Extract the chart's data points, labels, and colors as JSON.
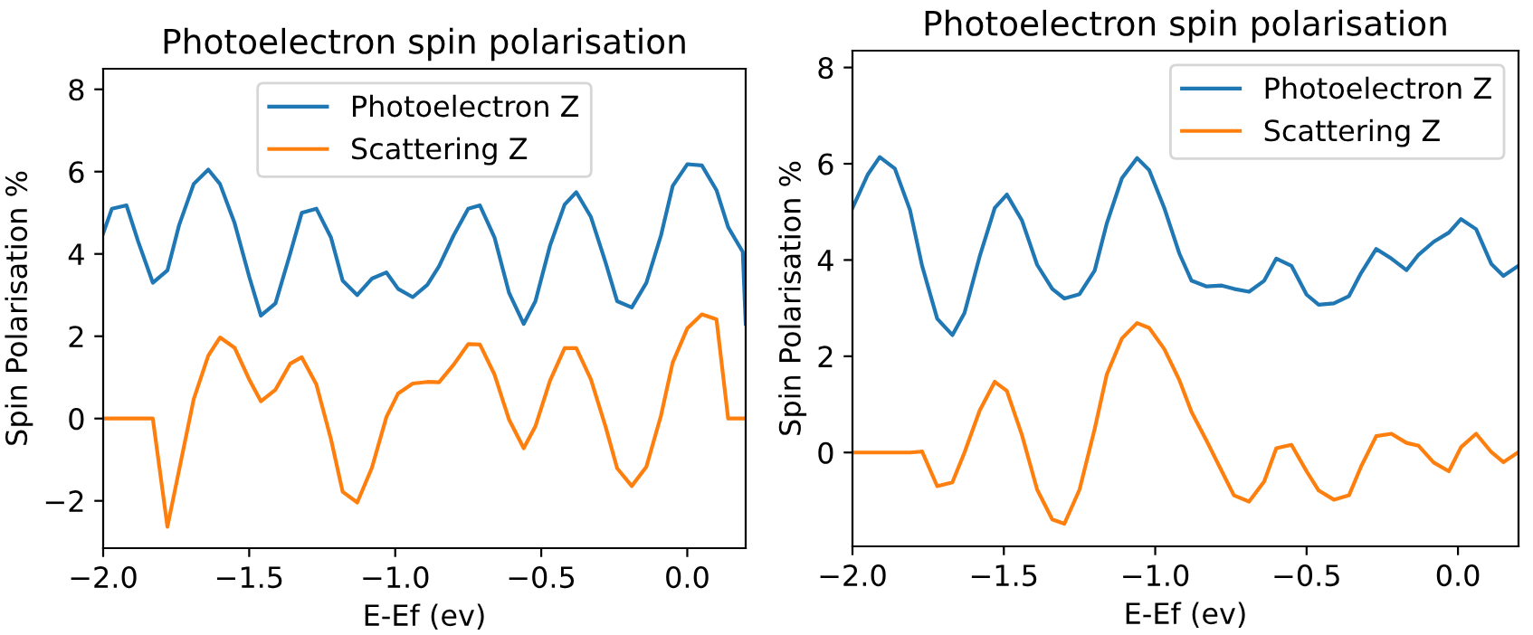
{
  "chart_data": [
    {
      "type": "line",
      "title": "Photoelectron spin polarisation",
      "xlabel": "E-Ef (ev)",
      "ylabel": "Spin Polarisation %",
      "xlim": [
        -2.0,
        0.2
      ],
      "ylim": [
        -3.15,
        8.5
      ],
      "xticks": [
        {
          "value": -2.0,
          "label": "−2.0"
        },
        {
          "value": -1.5,
          "label": "−1.5"
        },
        {
          "value": -1.0,
          "label": "−1.0"
        },
        {
          "value": -0.5,
          "label": "−0.5"
        },
        {
          "value": 0.0,
          "label": "0.0"
        }
      ],
      "yticks": [
        {
          "value": -2,
          "label": "−2"
        },
        0,
        2,
        4,
        6,
        8
      ],
      "legend": "top center",
      "grid": false,
      "x": [
        -2.0,
        -1.97,
        -1.92,
        -1.88,
        -1.83,
        -1.78,
        -1.74,
        -1.69,
        -1.64,
        -1.6,
        -1.55,
        -1.5,
        -1.46,
        -1.41,
        -1.36,
        -1.32,
        -1.27,
        -1.22,
        -1.18,
        -1.13,
        -1.08,
        -1.03,
        -0.99,
        -0.94,
        -0.89,
        -0.85,
        -0.8,
        -0.75,
        -0.71,
        -0.66,
        -0.61,
        -0.56,
        -0.52,
        -0.47,
        -0.42,
        -0.38,
        -0.33,
        -0.28,
        -0.24,
        -0.19,
        -0.14,
        -0.09,
        -0.05,
        0.0,
        0.05,
        0.1,
        0.14,
        0.19,
        0.2
      ],
      "series": [
        {
          "name": "Photoelectron Z",
          "color": "#1f77b4",
          "values": [
            4.5,
            5.1,
            5.18,
            4.3,
            3.3,
            3.6,
            4.7,
            5.7,
            6.05,
            5.7,
            4.75,
            3.45,
            2.5,
            2.8,
            4.0,
            5.0,
            5.1,
            4.4,
            3.35,
            3.0,
            3.4,
            3.55,
            3.15,
            2.95,
            3.25,
            3.7,
            4.45,
            5.1,
            5.18,
            4.4,
            3.05,
            2.3,
            2.85,
            4.2,
            5.2,
            5.5,
            4.9,
            3.8,
            2.85,
            2.7,
            3.3,
            4.45,
            5.65,
            6.18,
            6.15,
            5.55,
            4.65,
            4.05,
            2.3
          ]
        },
        {
          "name": "Scattering Z",
          "color": "#ff7f0e",
          "values": [
            0,
            0,
            0,
            0,
            0,
            -2.63,
            -1.25,
            0.47,
            1.53,
            1.97,
            1.72,
            0.95,
            0.42,
            0.7,
            1.33,
            1.49,
            0.83,
            -0.5,
            -1.78,
            -2.04,
            -1.2,
            0.04,
            0.61,
            0.85,
            0.89,
            0.88,
            1.31,
            1.81,
            1.8,
            1.07,
            -0.03,
            -0.72,
            -0.19,
            0.92,
            1.71,
            1.71,
            0.95,
            -0.19,
            -1.21,
            -1.64,
            -1.17,
            0.07,
            1.36,
            2.19,
            2.53,
            2.41,
            0,
            0,
            0
          ]
        }
      ]
    },
    {
      "type": "line",
      "title": "Photoelectron spin polarisation",
      "xlabel": "E-Ef (ev)",
      "ylabel": "Spin Polarisation %",
      "xlim": [
        -2.0,
        0.2
      ],
      "ylim": [
        -1.95,
        8.35
      ],
      "xticks": [
        {
          "value": -2.0,
          "label": "−2.0"
        },
        {
          "value": -1.5,
          "label": "−1.5"
        },
        {
          "value": -1.0,
          "label": "−1.0"
        },
        {
          "value": -0.5,
          "label": "−0.5"
        },
        {
          "value": 0.0,
          "label": "0.0"
        }
      ],
      "yticks": [
        0,
        2,
        4,
        6,
        8
      ],
      "legend": "top right",
      "grid": false,
      "x": [
        -2.0,
        -1.95,
        -1.91,
        -1.86,
        -1.81,
        -1.77,
        -1.72,
        -1.67,
        -1.63,
        -1.58,
        -1.53,
        -1.49,
        -1.44,
        -1.39,
        -1.34,
        -1.3,
        -1.25,
        -1.2,
        -1.16,
        -1.11,
        -1.06,
        -1.02,
        -0.97,
        -0.92,
        -0.88,
        -0.83,
        -0.78,
        -0.74,
        -0.69,
        -0.64,
        -0.6,
        -0.55,
        -0.5,
        -0.46,
        -0.41,
        -0.36,
        -0.32,
        -0.27,
        -0.22,
        -0.17,
        -0.13,
        -0.08,
        -0.03,
        0.01,
        0.06,
        0.11,
        0.15,
        0.2
      ],
      "series": [
        {
          "name": "Photoelectron Z",
          "color": "#1f77b4",
          "values": [
            5.08,
            5.77,
            6.14,
            5.9,
            5.04,
            3.88,
            2.78,
            2.44,
            2.9,
            4.07,
            5.08,
            5.36,
            4.82,
            3.9,
            3.4,
            3.2,
            3.29,
            3.78,
            4.76,
            5.7,
            6.12,
            5.87,
            5.08,
            4.13,
            3.57,
            3.45,
            3.47,
            3.4,
            3.34,
            3.57,
            4.03,
            3.88,
            3.28,
            3.07,
            3.1,
            3.25,
            3.73,
            4.23,
            4.03,
            3.79,
            4.11,
            4.38,
            4.57,
            4.85,
            4.64,
            3.92,
            3.67,
            3.88
          ]
        },
        {
          "name": "Scattering Z",
          "color": "#ff7f0e",
          "values": [
            0,
            0,
            0,
            0,
            0,
            0.02,
            -0.7,
            -0.62,
            0,
            0.87,
            1.47,
            1.28,
            0.36,
            -0.77,
            -1.39,
            -1.48,
            -0.77,
            0.49,
            1.62,
            2.37,
            2.69,
            2.59,
            2.15,
            1.5,
            0.84,
            0.24,
            -0.39,
            -0.89,
            -1.02,
            -0.6,
            0.09,
            0.16,
            -0.39,
            -0.79,
            -0.98,
            -0.89,
            -0.29,
            0.34,
            0.39,
            0.2,
            0.14,
            -0.21,
            -0.39,
            0.11,
            0.39,
            0.01,
            -0.2,
            0.01
          ]
        }
      ]
    }
  ]
}
